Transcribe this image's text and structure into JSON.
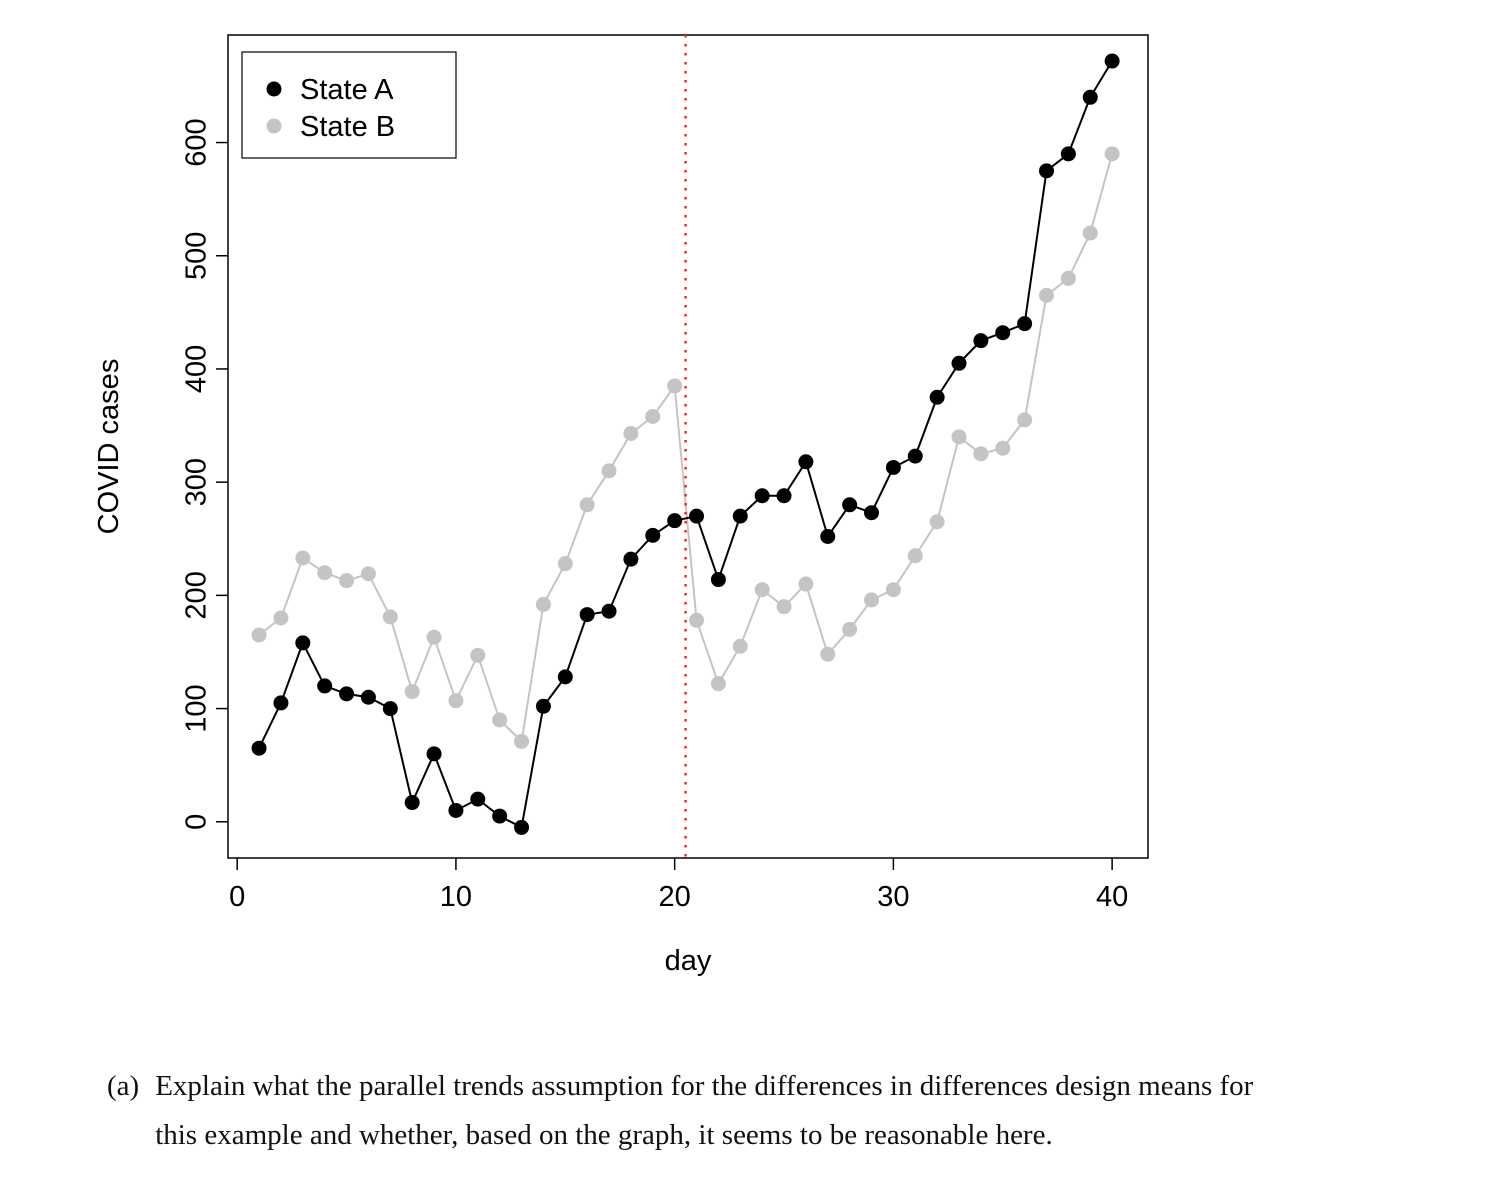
{
  "question": {
    "label": "(a)",
    "line1": "Explain what the parallel trends assumption for the differences in differences design means for",
    "line2": "this example and whether, based on the graph, it seems to be reasonable here."
  },
  "chart_data": {
    "type": "line",
    "title": "",
    "xlabel": "day",
    "ylabel": "COVID cases",
    "x": [
      1,
      2,
      3,
      4,
      5,
      6,
      7,
      8,
      9,
      10,
      11,
      12,
      13,
      14,
      15,
      16,
      17,
      18,
      19,
      20,
      21,
      22,
      23,
      24,
      25,
      26,
      27,
      28,
      29,
      30,
      31,
      32,
      33,
      34,
      35,
      36,
      37,
      38,
      39,
      40
    ],
    "series": [
      {
        "name": "State A",
        "color": "#000000",
        "values": [
          65,
          105,
          158,
          120,
          113,
          110,
          100,
          17,
          60,
          10,
          20,
          5,
          -5,
          102,
          128,
          183,
          186,
          232,
          253,
          266,
          270,
          214,
          270,
          288,
          288,
          318,
          252,
          280,
          273,
          313,
          323,
          375,
          405,
          425,
          432,
          440,
          575,
          590,
          640,
          672
        ]
      },
      {
        "name": "State B",
        "color": "#c4c4c4",
        "values": [
          165,
          180,
          233,
          220,
          213,
          219,
          181,
          115,
          163,
          107,
          147,
          90,
          71,
          192,
          228,
          280,
          310,
          343,
          358,
          385,
          178,
          122,
          155,
          205,
          190,
          210,
          148,
          170,
          196,
          205,
          235,
          265,
          340,
          325,
          330,
          355,
          465,
          480,
          520,
          590
        ]
      }
    ],
    "xticks": [
      0,
      10,
      20,
      30,
      40
    ],
    "yticks": [
      0,
      100,
      200,
      300,
      400,
      500,
      600
    ],
    "xlim": [
      -0.42,
      41.64
    ],
    "ylim": [
      -32,
      695
    ],
    "vline": {
      "x": 20.5,
      "color": "#ff2222",
      "style": "dotted"
    },
    "legend": {
      "position": "top-left",
      "entries": [
        "State A",
        "State B"
      ]
    },
    "grid": false
  }
}
